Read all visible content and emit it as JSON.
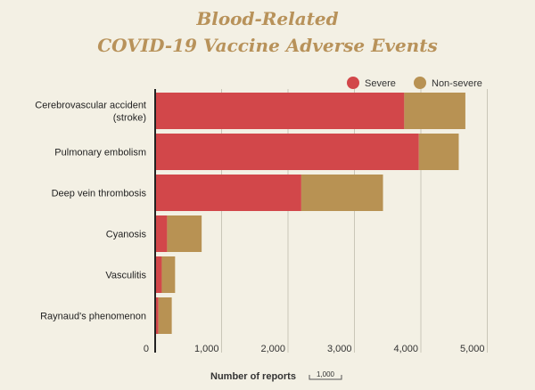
{
  "colors": {
    "severe": "#d2474a",
    "non_severe": "#b89253",
    "background": "#f3f0e4",
    "grid": "#c9c6b8",
    "title": "#b8925a"
  },
  "chart_data": {
    "type": "bar",
    "orientation": "horizontal",
    "stacked": true,
    "title_line1": "Blood-Related",
    "title_line2": "COVID-19 Vaccine Adverse Events",
    "xlabel": "Number of reports",
    "scale_label": "1,000",
    "categories": [
      "Cerebrovascular accident (stroke)",
      "Pulmonary embolism",
      "Deep vein thrombosis",
      "Cyanosis",
      "Vasculitis",
      "Raynaud's phenomenon"
    ],
    "series": [
      {
        "name": "Severe",
        "values": [
          3750,
          3970,
          2200,
          180,
          100,
          50
        ]
      },
      {
        "name": "Non-severe",
        "values": [
          920,
          600,
          1230,
          520,
          200,
          200
        ]
      }
    ],
    "xlim": [
      0,
      5000
    ],
    "xticks": [
      {
        "value": 0,
        "label": "0"
      },
      {
        "value": 1000,
        "label": "1,000"
      },
      {
        "value": 2000,
        "label": "2,000"
      },
      {
        "value": 3000,
        "label": "3,000"
      },
      {
        "value": 4000,
        "label": "4,000"
      },
      {
        "value": 5000,
        "label": "5,000"
      }
    ],
    "grid": true,
    "legend_position": "top-right"
  }
}
